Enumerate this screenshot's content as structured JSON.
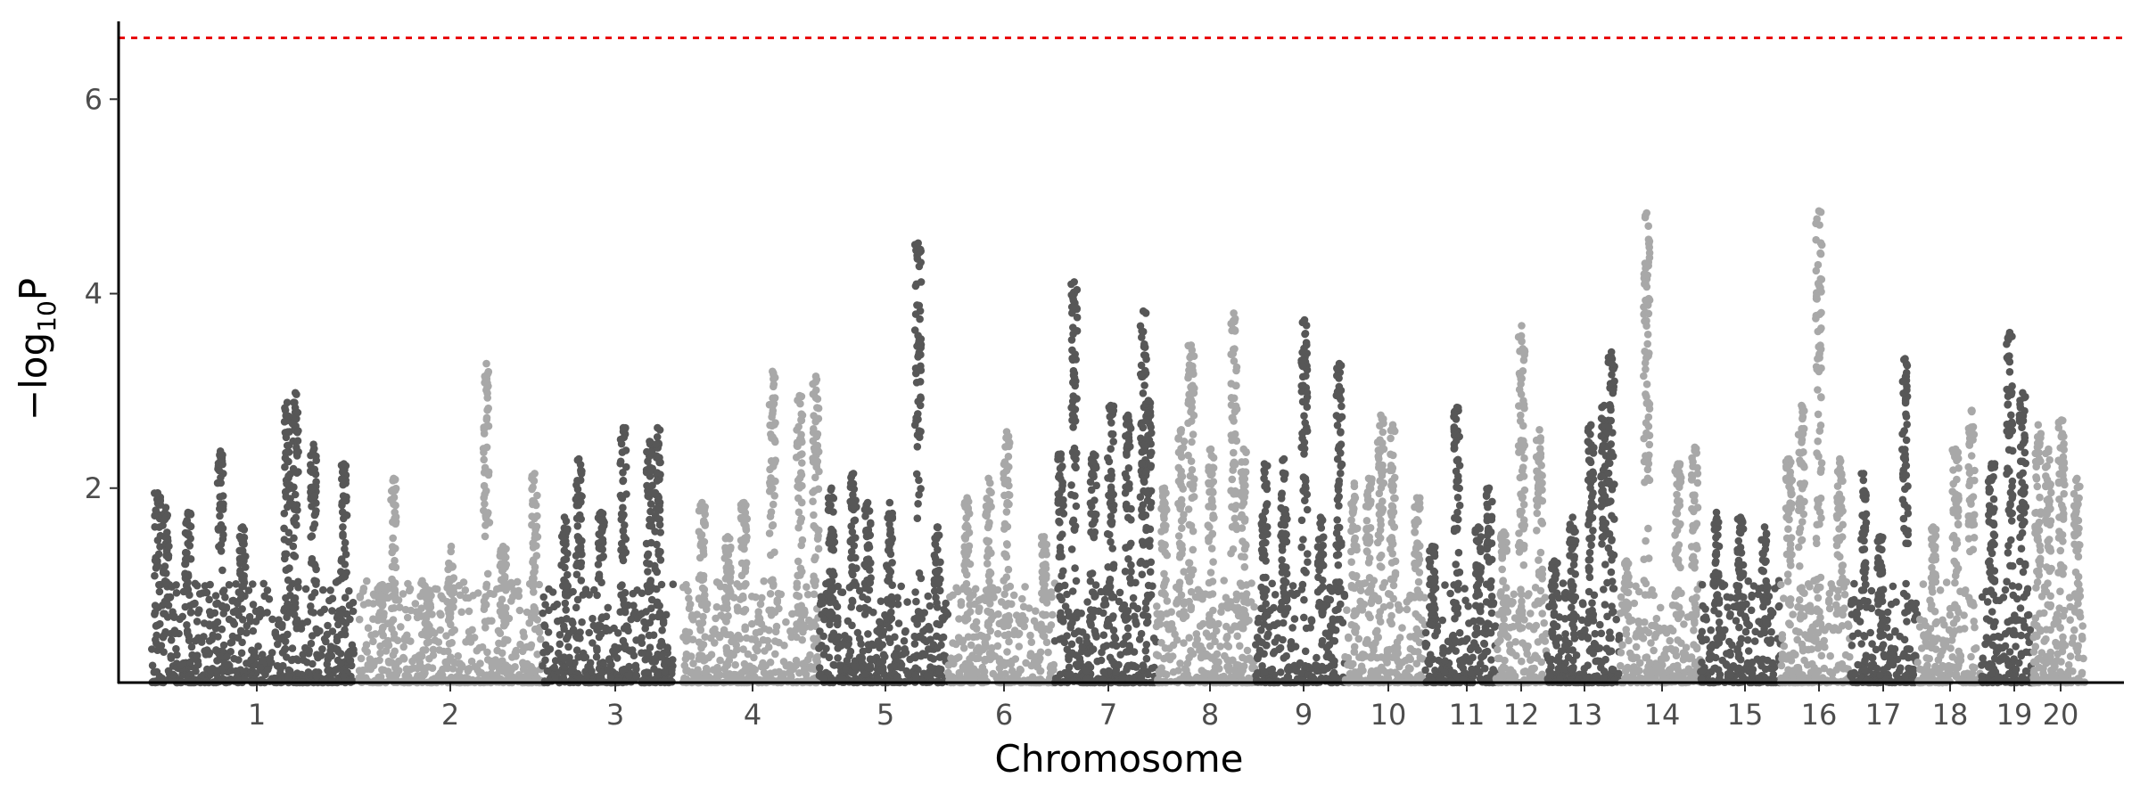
{
  "chart_data": {
    "type": "scatter",
    "title": "",
    "xlabel": "Chromosome",
    "ylabel_main": "−log",
    "ylabel_sub": "10",
    "ylabel_tail": "P",
    "ylim": [
      0,
      6.8
    ],
    "yticks": [
      2,
      4,
      6
    ],
    "significance_threshold": 6.63,
    "colors": {
      "dark": "#575757",
      "light": "#a8a8a8",
      "threshold": "#e8000b",
      "axis": "#000000"
    },
    "chromosomes": [
      {
        "label": "1",
        "shade": "dark",
        "peaks": [
          {
            "pos": 0.03,
            "y": 1.95
          },
          {
            "pos": 0.07,
            "y": 1.8
          },
          {
            "pos": 0.18,
            "y": 1.75
          },
          {
            "pos": 0.34,
            "y": 2.38
          },
          {
            "pos": 0.45,
            "y": 1.6
          },
          {
            "pos": 0.67,
            "y": 2.88
          },
          {
            "pos": 0.71,
            "y": 2.98
          },
          {
            "pos": 0.8,
            "y": 2.45
          },
          {
            "pos": 0.95,
            "y": 2.25
          }
        ]
      },
      {
        "label": "2",
        "shade": "light",
        "peaks": [
          {
            "pos": 0.12,
            "y": 1.0
          },
          {
            "pos": 0.19,
            "y": 2.1
          },
          {
            "pos": 0.38,
            "y": 0.95
          },
          {
            "pos": 0.5,
            "y": 1.4
          },
          {
            "pos": 0.69,
            "y": 3.28
          },
          {
            "pos": 0.78,
            "y": 1.4
          },
          {
            "pos": 0.95,
            "y": 2.15
          }
        ]
      },
      {
        "label": "3",
        "shade": "dark",
        "peaks": [
          {
            "pos": 0.17,
            "y": 1.7
          },
          {
            "pos": 0.28,
            "y": 2.3
          },
          {
            "pos": 0.45,
            "y": 1.75
          },
          {
            "pos": 0.62,
            "y": 2.62
          },
          {
            "pos": 0.82,
            "y": 2.48
          },
          {
            "pos": 0.88,
            "y": 2.62
          }
        ]
      },
      {
        "label": "4",
        "shade": "light",
        "peaks": [
          {
            "pos": 0.14,
            "y": 1.85
          },
          {
            "pos": 0.33,
            "y": 1.5
          },
          {
            "pos": 0.45,
            "y": 1.85
          },
          {
            "pos": 0.66,
            "y": 3.2
          },
          {
            "pos": 0.86,
            "y": 2.95
          },
          {
            "pos": 0.98,
            "y": 3.15
          }
        ]
      },
      {
        "label": "5",
        "shade": "dark",
        "peaks": [
          {
            "pos": 0.1,
            "y": 2.0
          },
          {
            "pos": 0.27,
            "y": 2.15
          },
          {
            "pos": 0.38,
            "y": 1.85
          },
          {
            "pos": 0.55,
            "y": 1.85
          },
          {
            "pos": 0.77,
            "y": 4.52
          },
          {
            "pos": 0.92,
            "y": 1.6
          }
        ]
      },
      {
        "label": "6",
        "shade": "light",
        "peaks": [
          {
            "pos": 0.18,
            "y": 1.9
          },
          {
            "pos": 0.38,
            "y": 2.1
          },
          {
            "pos": 0.55,
            "y": 2.58
          },
          {
            "pos": 0.9,
            "y": 1.5
          }
        ]
      },
      {
        "label": "7",
        "shade": "dark",
        "peaks": [
          {
            "pos": 0.06,
            "y": 2.35
          },
          {
            "pos": 0.19,
            "y": 4.12
          },
          {
            "pos": 0.38,
            "y": 2.35
          },
          {
            "pos": 0.55,
            "y": 2.85
          },
          {
            "pos": 0.72,
            "y": 2.75
          },
          {
            "pos": 0.87,
            "y": 3.82
          },
          {
            "pos": 0.92,
            "y": 2.9
          }
        ]
      },
      {
        "label": "8",
        "shade": "light",
        "peaks": [
          {
            "pos": 0.08,
            "y": 2.0
          },
          {
            "pos": 0.25,
            "y": 2.6
          },
          {
            "pos": 0.35,
            "y": 3.47
          },
          {
            "pos": 0.55,
            "y": 2.4
          },
          {
            "pos": 0.78,
            "y": 3.8
          },
          {
            "pos": 0.88,
            "y": 2.4
          }
        ]
      },
      {
        "label": "9",
        "shade": "dark",
        "peaks": [
          {
            "pos": 0.1,
            "y": 2.25
          },
          {
            "pos": 0.32,
            "y": 2.3
          },
          {
            "pos": 0.55,
            "y": 3.73
          },
          {
            "pos": 0.73,
            "y": 1.7
          },
          {
            "pos": 0.94,
            "y": 3.28
          }
        ]
      },
      {
        "label": "10",
        "shade": "light",
        "peaks": [
          {
            "pos": 0.12,
            "y": 2.05
          },
          {
            "pos": 0.3,
            "y": 2.1
          },
          {
            "pos": 0.45,
            "y": 2.75
          },
          {
            "pos": 0.6,
            "y": 2.65
          },
          {
            "pos": 0.9,
            "y": 1.9
          }
        ]
      },
      {
        "label": "11",
        "shade": "dark",
        "peaks": [
          {
            "pos": 0.1,
            "y": 1.4
          },
          {
            "pos": 0.45,
            "y": 2.83
          },
          {
            "pos": 0.75,
            "y": 1.6
          },
          {
            "pos": 0.9,
            "y": 2.0
          }
        ]
      },
      {
        "label": "12",
        "shade": "light",
        "peaks": [
          {
            "pos": 0.15,
            "y": 1.55
          },
          {
            "pos": 0.5,
            "y": 3.67
          },
          {
            "pos": 0.85,
            "y": 2.6
          }
        ]
      },
      {
        "label": "13",
        "shade": "dark",
        "peaks": [
          {
            "pos": 0.1,
            "y": 1.25
          },
          {
            "pos": 0.35,
            "y": 1.7
          },
          {
            "pos": 0.6,
            "y": 2.65
          },
          {
            "pos": 0.78,
            "y": 2.85
          },
          {
            "pos": 0.88,
            "y": 3.4
          }
        ]
      },
      {
        "label": "14",
        "shade": "light",
        "peaks": [
          {
            "pos": 0.08,
            "y": 1.25
          },
          {
            "pos": 0.33,
            "y": 4.83
          },
          {
            "pos": 0.72,
            "y": 2.25
          },
          {
            "pos": 0.93,
            "y": 2.42
          }
        ]
      },
      {
        "label": "15",
        "shade": "dark",
        "peaks": [
          {
            "pos": 0.2,
            "y": 1.75
          },
          {
            "pos": 0.5,
            "y": 1.7
          },
          {
            "pos": 0.8,
            "y": 1.6
          }
        ]
      },
      {
        "label": "16",
        "shade": "light",
        "peaks": [
          {
            "pos": 0.12,
            "y": 2.3
          },
          {
            "pos": 0.3,
            "y": 2.85
          },
          {
            "pos": 0.55,
            "y": 4.85
          },
          {
            "pos": 0.85,
            "y": 2.3
          }
        ]
      },
      {
        "label": "17",
        "shade": "dark",
        "peaks": [
          {
            "pos": 0.2,
            "y": 2.15
          },
          {
            "pos": 0.45,
            "y": 1.5
          },
          {
            "pos": 0.82,
            "y": 3.33
          }
        ]
      },
      {
        "label": "18",
        "shade": "light",
        "peaks": [
          {
            "pos": 0.25,
            "y": 1.6
          },
          {
            "pos": 0.6,
            "y": 2.4
          },
          {
            "pos": 0.85,
            "y": 2.8
          }
        ]
      },
      {
        "label": "19",
        "shade": "dark",
        "peaks": [
          {
            "pos": 0.2,
            "y": 2.25
          },
          {
            "pos": 0.55,
            "y": 3.6
          },
          {
            "pos": 0.8,
            "y": 2.98
          }
        ]
      },
      {
        "label": "20",
        "shade": "light",
        "peaks": [
          {
            "pos": 0.1,
            "y": 2.65
          },
          {
            "pos": 0.3,
            "y": 2.4
          },
          {
            "pos": 0.55,
            "y": 2.7
          },
          {
            "pos": 0.85,
            "y": 2.1
          }
        ]
      }
    ]
  }
}
